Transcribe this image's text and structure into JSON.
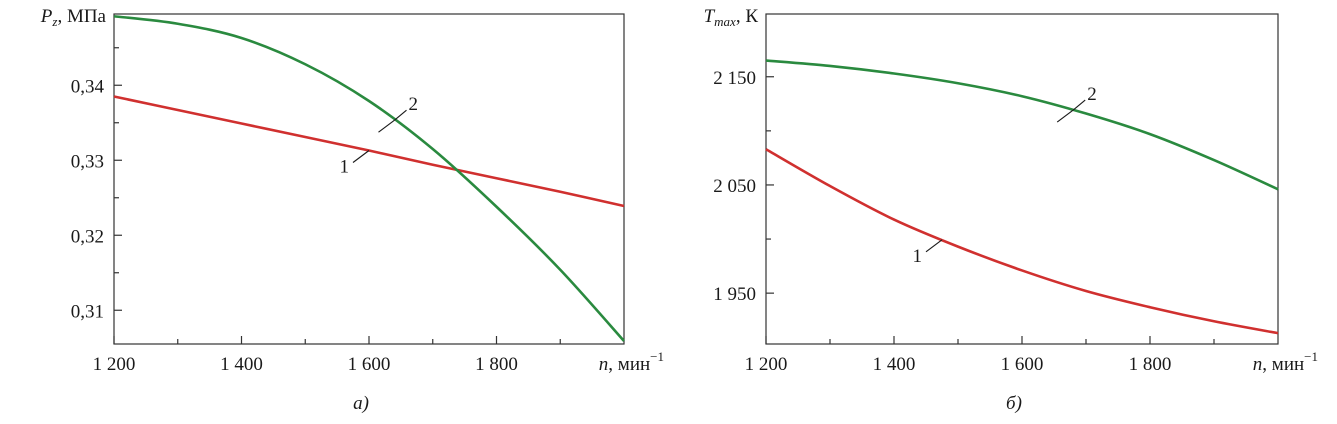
{
  "chart_data": [
    {
      "type": "line",
      "caption": "а)",
      "ylabel_main": "P",
      "ylabel_sub": "z",
      "ylabel_unit": ", МПа",
      "xlabel_main": "n",
      "xlabel_unit": ", мин",
      "xlabel_exp": "−1",
      "xlim": [
        1200,
        2000
      ],
      "ylim": [
        0.3055,
        0.3495
      ],
      "x_ticks": [
        1200,
        1400,
        1600,
        1800
      ],
      "x_tick_labels": [
        "1 200",
        "1 400",
        "1 600",
        "1 800"
      ],
      "x_minor_ticks": [
        1300,
        1500,
        1700,
        1900
      ],
      "y_ticks": [
        0.31,
        0.32,
        0.33,
        0.34
      ],
      "y_tick_labels": [
        "0,31",
        "0,32",
        "0,33",
        "0,34"
      ],
      "y_minor_ticks": [
        0.315,
        0.325,
        0.335,
        0.345
      ],
      "series": [
        {
          "name": "1",
          "color": "#d0302f",
          "x": [
            1200,
            1300,
            1400,
            1500,
            1600,
            1700,
            1800,
            1900,
            2000
          ],
          "y": [
            0.3385,
            0.3367,
            0.3349,
            0.3331,
            0.3313,
            0.3294,
            0.3276,
            0.3258,
            0.3239
          ]
        },
        {
          "name": "2",
          "color": "#2a8a3f",
          "x": [
            1200,
            1300,
            1400,
            1500,
            1600,
            1700,
            1800,
            1900,
            2000
          ],
          "y": [
            0.3492,
            0.3482,
            0.3463,
            0.3428,
            0.3379,
            0.3315,
            0.3238,
            0.3154,
            0.3059
          ]
        }
      ],
      "curve_labels": [
        {
          "text": "1",
          "series": 0,
          "x": 1600
        },
        {
          "text": "2",
          "series": 1,
          "x": 1640
        }
      ]
    },
    {
      "type": "line",
      "caption": "б)",
      "ylabel_main": "T",
      "ylabel_sub": "max",
      "ylabel_unit": ", К",
      "xlabel_main": "n",
      "xlabel_unit": ", мин",
      "xlabel_exp": "−1",
      "xlim": [
        1200,
        2000
      ],
      "ylim": [
        1903,
        2208
      ],
      "x_ticks": [
        1200,
        1400,
        1600,
        1800
      ],
      "x_tick_labels": [
        "1 200",
        "1 400",
        "1 600",
        "1 800"
      ],
      "x_minor_ticks": [
        1300,
        1500,
        1700,
        1900
      ],
      "y_ticks": [
        1950,
        2050,
        2150
      ],
      "y_tick_labels": [
        "1 950",
        "2 050",
        "2 150"
      ],
      "y_minor_ticks": [
        2000,
        2100
      ],
      "series": [
        {
          "name": "1",
          "color": "#d0302f",
          "x": [
            1200,
            1300,
            1400,
            1500,
            1600,
            1700,
            1800,
            1900,
            2000
          ],
          "y": [
            2083,
            2049,
            2018,
            1993,
            1971,
            1952,
            1937,
            1924,
            1913
          ]
        },
        {
          "name": "2",
          "color": "#2a8a3f",
          "x": [
            1200,
            1300,
            1400,
            1500,
            1600,
            1700,
            1800,
            1900,
            2000
          ],
          "y": [
            2165,
            2160,
            2153,
            2144,
            2132,
            2116,
            2097,
            2073,
            2046
          ]
        }
      ],
      "curve_labels": [
        {
          "text": "1",
          "series": 0,
          "x": 1475
        },
        {
          "text": "2",
          "series": 1,
          "x": 1680
        }
      ]
    }
  ]
}
